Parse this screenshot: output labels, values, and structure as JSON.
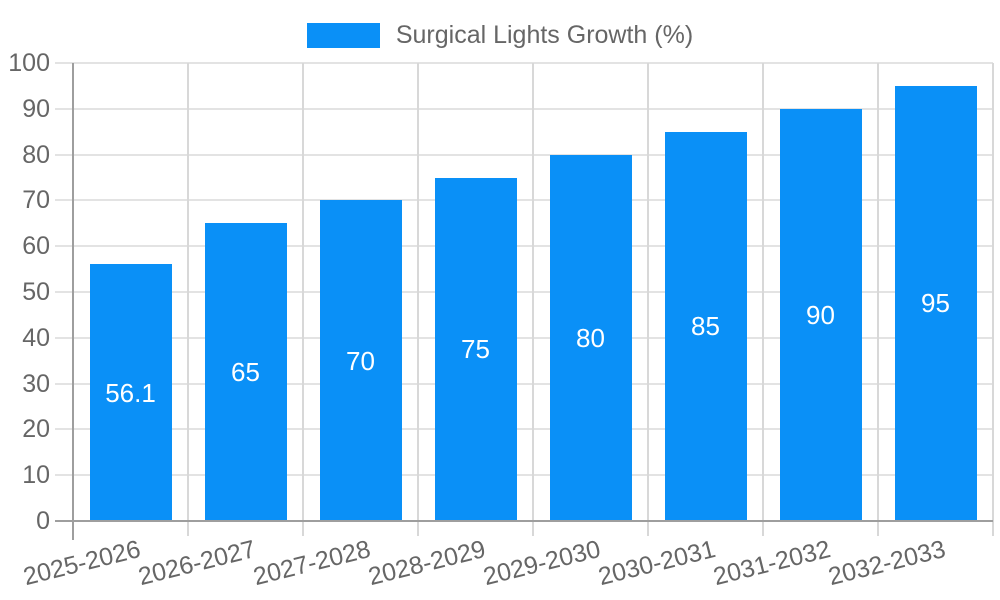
{
  "chart_data": {
    "type": "bar",
    "title": "",
    "series_label": "Surgical Lights Growth (%)",
    "categories": [
      "2025-2026",
      "2026-2027",
      "2027-2028",
      "2028-2029",
      "2029-2030",
      "2030-2031",
      "2031-2032",
      "2032-2033"
    ],
    "values": [
      56.1,
      65,
      70,
      75,
      80,
      85,
      90,
      95
    ],
    "value_labels": [
      "56.1",
      "65",
      "70",
      "75",
      "80",
      "85",
      "90",
      "95"
    ],
    "xlabel": "",
    "ylabel": "",
    "ylim": [
      0,
      100
    ],
    "ytick_step": 10,
    "ytick_labels": [
      "0",
      "10",
      "20",
      "30",
      "40",
      "50",
      "60",
      "70",
      "80",
      "90",
      "100"
    ],
    "grid": true,
    "legend_position": "top-center",
    "colors": {
      "bar": "#0a90f7",
      "axis_line": "#9e9e9e",
      "grid_h": "#e3e3e3",
      "grid_v": "#d8d8d8",
      "tick_text": "#666666",
      "legend_text": "#666666",
      "bar_label_text": "#ffffff",
      "background": "#ffffff"
    }
  }
}
